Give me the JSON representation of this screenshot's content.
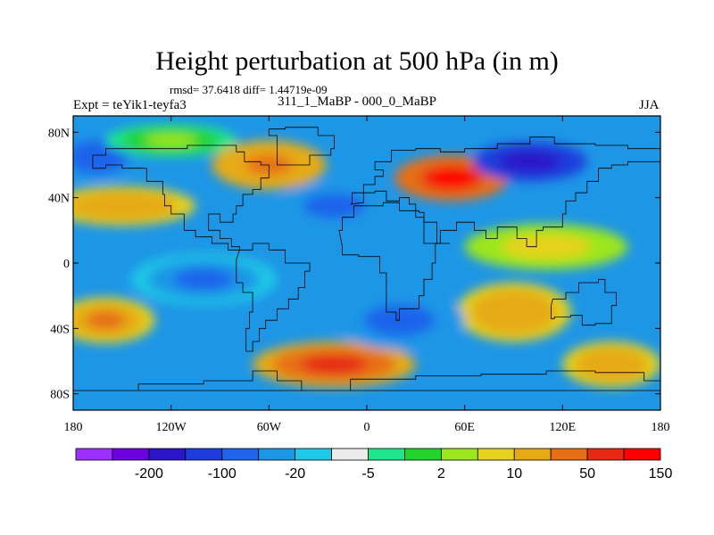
{
  "title": "Height perturbation at 500 hPa (in m)",
  "stats": "rmsd= 37.6418 diff= 1.44719e-09",
  "expt": "Expt = teYik1-teyfa3",
  "center_label": "311_1_MaBP - 000_0_MaBP",
  "season": "JJA",
  "map": {
    "projection": "cylindrical-equidistant",
    "lon_range": [
      -180,
      180
    ],
    "lat_range": [
      -90,
      90
    ],
    "lat_ticks": [
      {
        "value": 80,
        "label": "80N"
      },
      {
        "value": 40,
        "label": "40N"
      },
      {
        "value": 0,
        "label": "0"
      },
      {
        "value": -40,
        "label": "40S"
      },
      {
        "value": -80,
        "label": "80S"
      }
    ],
    "lon_ticks": [
      {
        "value": -180,
        "label": "180"
      },
      {
        "value": -120,
        "label": "120W"
      },
      {
        "value": -60,
        "label": "60W"
      },
      {
        "value": 0,
        "label": "0"
      },
      {
        "value": 60,
        "label": "60E"
      },
      {
        "value": 120,
        "label": "120E"
      },
      {
        "value": 180,
        "label": "180"
      }
    ],
    "field": {
      "name": "Height perturbation at 500 hPa",
      "units": "m",
      "features": [
        {
          "lon": 52,
          "lat": 52,
          "value": 160,
          "rx": 35,
          "ry": 14
        },
        {
          "lon": -20,
          "lat": -62,
          "value": 110,
          "rx": 50,
          "ry": 14
        },
        {
          "lon": -60,
          "lat": 60,
          "value": 60,
          "rx": 35,
          "ry": 15
        },
        {
          "lon": -150,
          "lat": 35,
          "value": 45,
          "rx": 45,
          "ry": 12
        },
        {
          "lon": -160,
          "lat": -35,
          "value": 50,
          "rx": 30,
          "ry": 14
        },
        {
          "lon": 90,
          "lat": -30,
          "value": 45,
          "rx": 35,
          "ry": 18
        },
        {
          "lon": 150,
          "lat": -62,
          "value": 40,
          "rx": 30,
          "ry": 14
        },
        {
          "lon": 100,
          "lat": 62,
          "value": -150,
          "rx": 35,
          "ry": 12
        },
        {
          "lon": -20,
          "lat": 35,
          "value": -40,
          "rx": 35,
          "ry": 14
        },
        {
          "lon": -165,
          "lat": 65,
          "value": -50,
          "rx": 25,
          "ry": 14
        },
        {
          "lon": 20,
          "lat": -35,
          "value": -30,
          "rx": 40,
          "ry": 18
        },
        {
          "lon": -100,
          "lat": -10,
          "value": -25,
          "rx": 45,
          "ry": 16
        },
        {
          "lon": 110,
          "lat": 10,
          "value": 15,
          "rx": 50,
          "ry": 14
        },
        {
          "lon": -120,
          "lat": 75,
          "value": 5,
          "rx": 40,
          "ry": 10
        }
      ]
    },
    "colors": {
      "frame": "#000000",
      "coastline": "#000000"
    }
  },
  "colorbar": {
    "colors": [
      "#9b30ff",
      "#6a00e0",
      "#2c14c8",
      "#1e3cdc",
      "#1e64ec",
      "#1e96e6",
      "#1ec8e6",
      "#ebebeb",
      "#1ee68c",
      "#22d22d",
      "#9be61e",
      "#e6d21e",
      "#e6aa14",
      "#e66e14",
      "#e62814",
      "#ff0000"
    ],
    "levels": [
      -300,
      -200,
      -150,
      -100,
      -50,
      -20,
      -10,
      -5,
      -2,
      2,
      5,
      10,
      20,
      50,
      100,
      150,
      200,
      300
    ],
    "labels": [
      {
        "index": 1,
        "text": "-200"
      },
      {
        "index": 3,
        "text": "-100"
      },
      {
        "index": 5,
        "text": "-20"
      },
      {
        "index": 7,
        "text": "-5"
      },
      {
        "index": 9,
        "text": "2"
      },
      {
        "index": 11,
        "text": "10"
      },
      {
        "index": 13,
        "text": "50"
      },
      {
        "index": 15,
        "text": "150"
      }
    ]
  }
}
